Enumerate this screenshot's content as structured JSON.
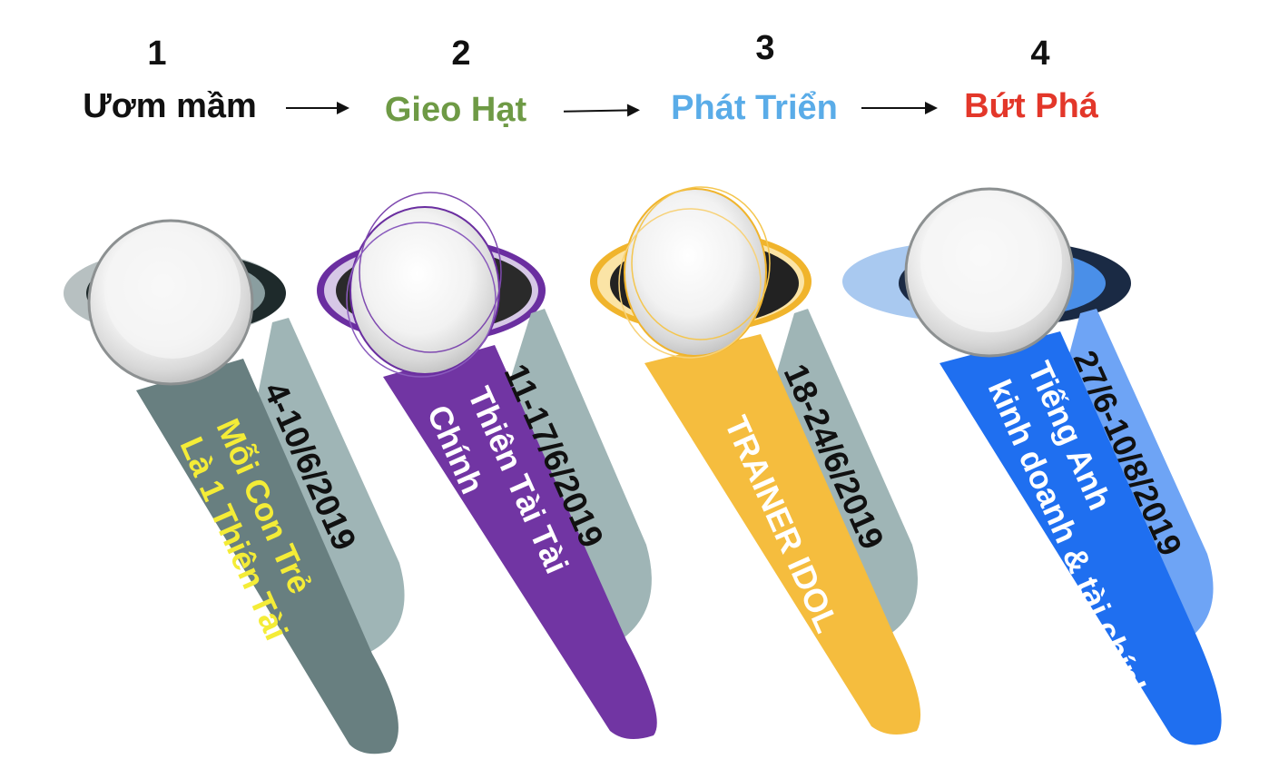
{
  "steps": [
    {
      "number": "1",
      "name": "Ươm mầm",
      "color": "#111111"
    },
    {
      "number": "2",
      "name": "Gieo Hạt",
      "color": "#6e9a45"
    },
    {
      "number": "3",
      "name": "Phát Triển",
      "color": "#5aace8"
    },
    {
      "number": "4",
      "name": "Bứt Phá",
      "color": "#e3372a"
    }
  ],
  "cards": [
    {
      "date": "4-10/6/2019",
      "title_line1": "Mỗi Con Trẻ",
      "title_line2": "Là 1 Thiên Tài",
      "front_color": "#687f80",
      "back_color": "#9fb5b6",
      "ring_color": "#8a9ea0",
      "title_color": "#f4ec37"
    },
    {
      "date": "11-17/6/2019",
      "title_line1": "Thiên Tài Tài",
      "title_line2": "Chính",
      "front_color": "#7135a3",
      "back_color": "#9fb5b6",
      "ring_color": "#6a2ea0",
      "title_color": "#ffffff"
    },
    {
      "date": "18-24/6/2019",
      "title_line1": "TRAINER IDOL",
      "title_line2": "",
      "front_color": "#f5bd3e",
      "back_color": "#9fb5b6",
      "ring_color": "#f0b42c",
      "title_color": "#ffffff"
    },
    {
      "date": "27/6-10/8/2019",
      "title_line1": "Tiếng Anh",
      "title_line2": "kinh doanh & tài chính",
      "front_color": "#1f6ff0",
      "back_color": "#6ea4f5",
      "ring_color": "#4a8fe8",
      "title_color": "#ffffff"
    }
  ]
}
